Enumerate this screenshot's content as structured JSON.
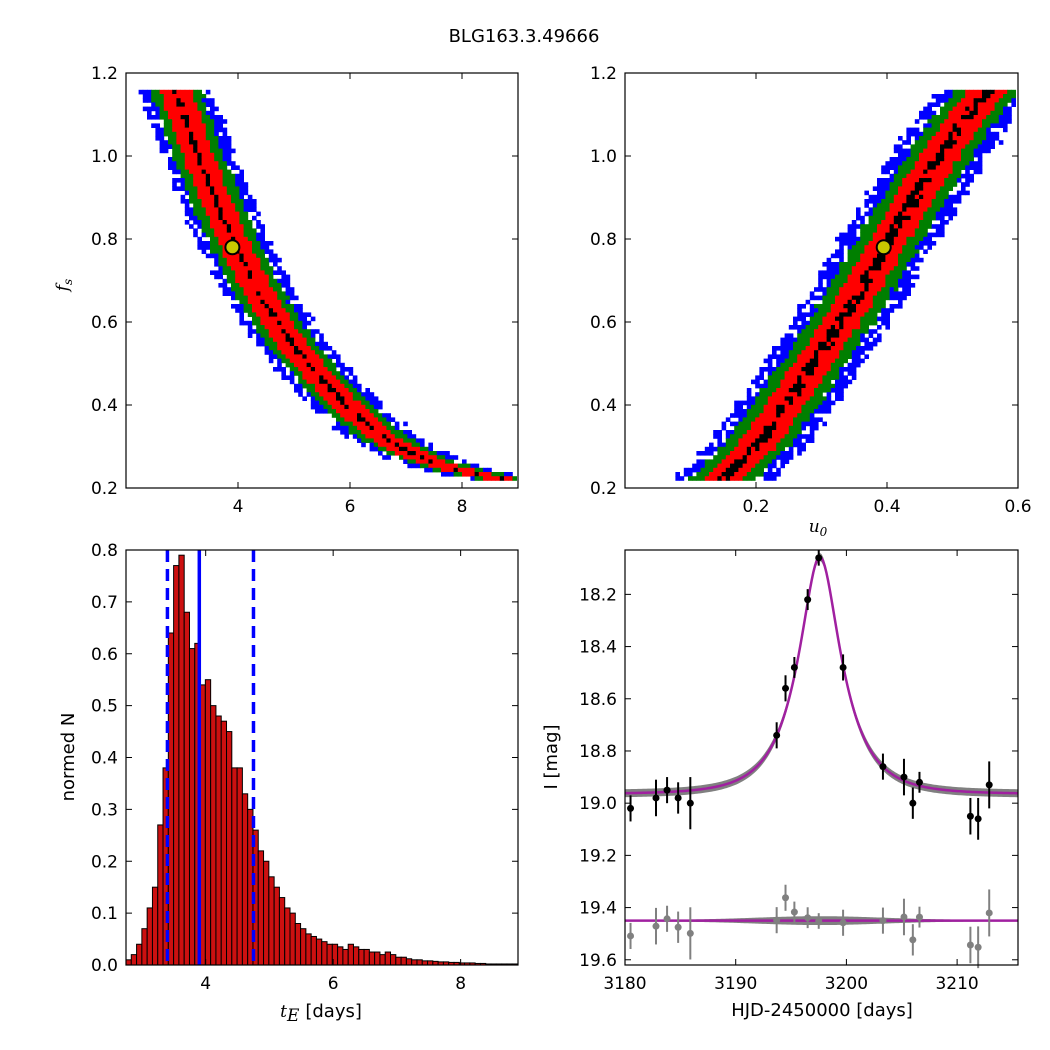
{
  "figure": {
    "title": "BLG163.3.49666"
  },
  "chart_data": [
    {
      "id": "panel-te-fs",
      "type": "heatmap",
      "title": "",
      "xlabel": "",
      "ylabel": "f_s",
      "ylabel_main": "f",
      "ylabel_sub": "s",
      "xlim": [
        2.0,
        9.0
      ],
      "ylim": [
        0.2,
        1.2
      ],
      "xticks": [
        4,
        6,
        8
      ],
      "xtick_labels": [
        "4",
        "6",
        "8"
      ],
      "yticks": [
        0.2,
        0.4,
        0.6,
        0.8,
        1.0,
        1.2
      ],
      "ytick_labels": [
        "0.2",
        "0.4",
        "0.6",
        "0.8",
        "1.0",
        "1.2"
      ],
      "levels": [
        {
          "name": "outer",
          "color": "#0000ff"
        },
        {
          "name": "2-sigma",
          "color": "#007f00"
        },
        {
          "name": "1-sigma",
          "color": "#ff0000"
        },
        {
          "name": "peak",
          "color": "#000000"
        }
      ],
      "ridge": {
        "x": [
          2.9,
          3.3,
          3.7,
          4.0,
          4.5,
          5.0,
          5.5,
          6.0,
          6.5,
          7.0,
          7.5,
          8.0,
          8.8
        ],
        "y": [
          1.15,
          1.0,
          0.86,
          0.77,
          0.64,
          0.54,
          0.46,
          0.39,
          0.33,
          0.29,
          0.26,
          0.24,
          0.22
        ]
      },
      "ridge_width": {
        "peak": 0.05,
        "red": 0.28,
        "green": 0.45,
        "blue": 0.65
      },
      "best_fit": {
        "x": 3.9,
        "y": 0.78
      },
      "marker_color": "#c8c800"
    },
    {
      "id": "panel-u0-fs",
      "type": "heatmap",
      "title": "",
      "xlabel": "u_0",
      "xlabel_main": "u",
      "xlabel_sub": "0",
      "ylabel": "",
      "xlim": [
        0.0,
        0.6
      ],
      "ylim": [
        0.2,
        1.2
      ],
      "xticks": [
        0.2,
        0.4,
        0.6
      ],
      "xtick_labels": [
        "0.2",
        "0.4",
        "0.6"
      ],
      "yticks": [
        0.2,
        0.4,
        0.6,
        0.8,
        1.0,
        1.2
      ],
      "ytick_labels": [
        "0.2",
        "0.4",
        "0.6",
        "0.8",
        "1.0",
        "1.2"
      ],
      "ridge": {
        "x": [
          0.15,
          0.2,
          0.25,
          0.3,
          0.35,
          0.4,
          0.45,
          0.5,
          0.55
        ],
        "y": [
          0.22,
          0.3,
          0.41,
          0.53,
          0.65,
          0.79,
          0.92,
          1.05,
          1.15
        ]
      },
      "ridge_width": {
        "peak": 0.01,
        "red": 0.03,
        "green": 0.05,
        "blue": 0.075
      },
      "best_fit": {
        "x": 0.395,
        "y": 0.78
      },
      "marker_color": "#c8c800"
    },
    {
      "id": "panel-te-hist",
      "type": "bar",
      "title": "",
      "xlabel": "t_E  [days]",
      "xlabel_main": "t",
      "xlabel_sub": "E",
      "xlabel_unit": "[days]",
      "ylabel": "normed N",
      "xlim": [
        2.75,
        8.9
      ],
      "ylim": [
        0.0,
        0.8
      ],
      "xticks": [
        4,
        6,
        8
      ],
      "xtick_labels": [
        "4",
        "6",
        "8"
      ],
      "yticks": [
        0.0,
        0.1,
        0.2,
        0.3,
        0.4,
        0.5,
        0.6,
        0.7,
        0.8
      ],
      "ytick_labels": [
        "0.0",
        "0.1",
        "0.2",
        "0.3",
        "0.4",
        "0.5",
        "0.6",
        "0.7",
        "0.8"
      ],
      "bar_color": "#cc1010",
      "bin_width": 0.083,
      "bin_start": 2.75,
      "values": [
        0.01,
        0.02,
        0.04,
        0.07,
        0.11,
        0.15,
        0.27,
        0.38,
        0.64,
        0.77,
        0.79,
        0.68,
        0.61,
        0.62,
        0.54,
        0.55,
        0.5,
        0.48,
        0.47,
        0.45,
        0.38,
        0.38,
        0.33,
        0.3,
        0.26,
        0.22,
        0.2,
        0.17,
        0.15,
        0.13,
        0.11,
        0.1,
        0.08,
        0.07,
        0.06,
        0.055,
        0.05,
        0.045,
        0.04,
        0.04,
        0.035,
        0.03,
        0.04,
        0.035,
        0.03,
        0.03,
        0.025,
        0.025,
        0.02,
        0.025,
        0.02,
        0.015,
        0.015,
        0.012,
        0.01,
        0.01,
        0.008,
        0.008,
        0.007,
        0.006,
        0.006,
        0.005,
        0.005,
        0.004,
        0.004,
        0.004,
        0.003,
        0.003,
        0.002,
        0.002,
        0.002,
        0.002,
        0.002,
        0.002
      ],
      "median": 3.9,
      "bounds": [
        3.4,
        4.75
      ],
      "line_color": "#0000ff"
    },
    {
      "id": "panel-lightcurve",
      "type": "scatter",
      "title": "",
      "xlabel": "HJD-2450000 [days]",
      "ylabel": "I [mag]",
      "xlim": [
        3180,
        3215.5
      ],
      "ylim": [
        19.62,
        18.03
      ],
      "xticks": [
        3180,
        3190,
        3200,
        3210
      ],
      "xtick_labels": [
        "3180",
        "3190",
        "3200",
        "3210"
      ],
      "yticks": [
        18.2,
        18.4,
        18.6,
        18.8,
        19.0,
        19.2,
        19.4,
        19.6
      ],
      "ytick_labels": [
        "18.2",
        "18.4",
        "18.6",
        "18.8",
        "19.0",
        "19.2",
        "19.4",
        "19.6"
      ],
      "model": {
        "t0": 3197.6,
        "tE": 3.9,
        "u0": 0.395,
        "fs": 0.78,
        "baseline": 18.965,
        "color": "#a020a0",
        "band_color": "#808080"
      },
      "data": [
        {
          "x": 3180.5,
          "y": 19.02,
          "err": 0.05
        },
        {
          "x": 3182.8,
          "y": 18.98,
          "err": 0.07
        },
        {
          "x": 3183.8,
          "y": 18.95,
          "err": 0.05
        },
        {
          "x": 3184.8,
          "y": 18.98,
          "err": 0.06
        },
        {
          "x": 3185.9,
          "y": 19.0,
          "err": 0.1
        },
        {
          "x": 3193.7,
          "y": 18.74,
          "err": 0.05
        },
        {
          "x": 3194.5,
          "y": 18.56,
          "err": 0.05
        },
        {
          "x": 3195.3,
          "y": 18.48,
          "err": 0.04
        },
        {
          "x": 3196.5,
          "y": 18.22,
          "err": 0.04
        },
        {
          "x": 3197.5,
          "y": 18.06,
          "err": 0.03
        },
        {
          "x": 3199.7,
          "y": 18.48,
          "err": 0.05
        },
        {
          "x": 3203.3,
          "y": 18.86,
          "err": 0.05
        },
        {
          "x": 3205.2,
          "y": 18.9,
          "err": 0.07
        },
        {
          "x": 3206.0,
          "y": 19.0,
          "err": 0.06
        },
        {
          "x": 3206.6,
          "y": 18.92,
          "err": 0.04
        },
        {
          "x": 3211.2,
          "y": 19.05,
          "err": 0.07
        },
        {
          "x": 3211.9,
          "y": 19.06,
          "err": 0.08
        },
        {
          "x": 3212.9,
          "y": 18.93,
          "err": 0.09
        }
      ],
      "residual_offset": 19.45,
      "residual_color": "#808080",
      "point_color": "#000000"
    }
  ]
}
